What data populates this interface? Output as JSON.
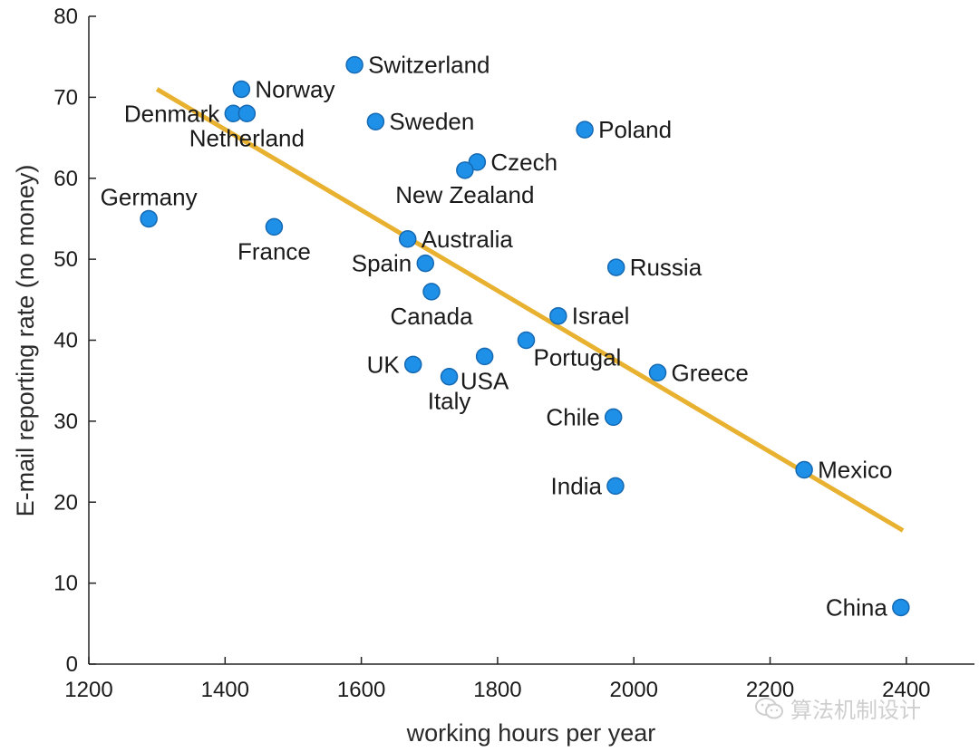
{
  "chart_data": {
    "type": "scatter",
    "xlabel": "working hours per year",
    "ylabel": "E-mail reporting rate (no money)",
    "xlim": [
      1200,
      2500
    ],
    "ylim": [
      0,
      80
    ],
    "x_ticks": [
      1200,
      1400,
      1600,
      1800,
      2000,
      2200,
      2400
    ],
    "y_ticks": [
      0,
      10,
      20,
      30,
      40,
      50,
      60,
      70,
      80
    ],
    "point_color": "#1e90e8",
    "point_edge_color": "#1569b3",
    "trendline_color": "#e8b130",
    "trendline": {
      "x": [
        1300,
        2395
      ],
      "y": [
        71,
        16.5
      ]
    },
    "points": [
      {
        "label": "Switzerland",
        "x": 1590,
        "y": 74,
        "label_pos": "right"
      },
      {
        "label": "Norway",
        "x": 1424,
        "y": 71,
        "label_pos": "right"
      },
      {
        "label": "Denmark",
        "x": 1412,
        "y": 68,
        "label_pos": "left"
      },
      {
        "label": "Netherland",
        "x": 1432,
        "y": 68,
        "label_pos": "below"
      },
      {
        "label": "Sweden",
        "x": 1621,
        "y": 67,
        "label_pos": "right"
      },
      {
        "label": "Poland",
        "x": 1928,
        "y": 66,
        "label_pos": "right"
      },
      {
        "label": "Czech",
        "x": 1770,
        "y": 62,
        "label_pos": "right"
      },
      {
        "label": "New Zealand",
        "x": 1752,
        "y": 61,
        "label_pos": "below"
      },
      {
        "label": "Germany",
        "x": 1288,
        "y": 55,
        "label_pos": "above"
      },
      {
        "label": "France",
        "x": 1472,
        "y": 54,
        "label_pos": "below"
      },
      {
        "label": "Australia",
        "x": 1668,
        "y": 52.5,
        "label_pos": "right"
      },
      {
        "label": "Spain",
        "x": 1694,
        "y": 49.5,
        "label_pos": "left"
      },
      {
        "label": "Russia",
        "x": 1974,
        "y": 49,
        "label_pos": "right"
      },
      {
        "label": "Canada",
        "x": 1703,
        "y": 46,
        "label_pos": "below"
      },
      {
        "label": "Israel",
        "x": 1889,
        "y": 43,
        "label_pos": "right"
      },
      {
        "label": "Portugal",
        "x": 1842,
        "y": 40,
        "label_pos": "below-right"
      },
      {
        "label": "UK",
        "x": 1676,
        "y": 37,
        "label_pos": "left"
      },
      {
        "label": "USA",
        "x": 1781,
        "y": 38,
        "label_pos": "below"
      },
      {
        "label": "Italy",
        "x": 1729,
        "y": 35.5,
        "label_pos": "below"
      },
      {
        "label": "Greece",
        "x": 2035,
        "y": 36,
        "label_pos": "right"
      },
      {
        "label": "Chile",
        "x": 1970,
        "y": 30.5,
        "label_pos": "left"
      },
      {
        "label": "Mexico",
        "x": 2250,
        "y": 24,
        "label_pos": "right"
      },
      {
        "label": "India",
        "x": 1973,
        "y": 22,
        "label_pos": "left"
      },
      {
        "label": "China",
        "x": 2392,
        "y": 7,
        "label_pos": "left"
      }
    ]
  },
  "watermark": {
    "icon": "wechat-icon",
    "text": "算法机制设计"
  }
}
